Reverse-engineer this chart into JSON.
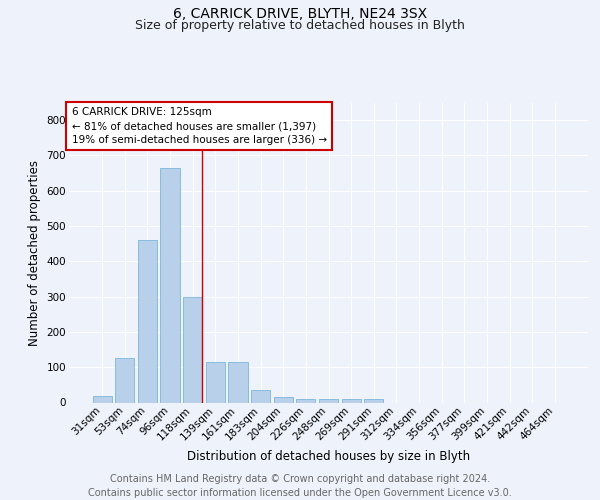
{
  "title1": "6, CARRICK DRIVE, BLYTH, NE24 3SX",
  "title2": "Size of property relative to detached houses in Blyth",
  "xlabel": "Distribution of detached houses by size in Blyth",
  "ylabel": "Number of detached properties",
  "footer1": "Contains HM Land Registry data © Crown copyright and database right 2024.",
  "footer2": "Contains public sector information licensed under the Open Government Licence v3.0.",
  "categories": [
    "31sqm",
    "53sqm",
    "74sqm",
    "96sqm",
    "118sqm",
    "139sqm",
    "161sqm",
    "183sqm",
    "204sqm",
    "226sqm",
    "248sqm",
    "269sqm",
    "291sqm",
    "312sqm",
    "334sqm",
    "356sqm",
    "377sqm",
    "399sqm",
    "421sqm",
    "442sqm",
    "464sqm"
  ],
  "values": [
    18,
    125,
    460,
    665,
    300,
    115,
    115,
    35,
    15,
    10,
    10,
    10,
    10,
    0,
    0,
    0,
    0,
    0,
    0,
    0,
    0
  ],
  "bar_color": "#b8d0ea",
  "bar_edge_color": "#6aaed6",
  "vline_color": "#cc0000",
  "annotation_text": "6 CARRICK DRIVE: 125sqm\n← 81% of detached houses are smaller (1,397)\n19% of semi-detached houses are larger (336) →",
  "annotation_box_color": "#ffffff",
  "annotation_box_edge": "#cc0000",
  "ylim": [
    0,
    850
  ],
  "yticks": [
    0,
    100,
    200,
    300,
    400,
    500,
    600,
    700,
    800
  ],
  "background_color": "#eef2fa",
  "plot_bg_color": "#eef2fa",
  "grid_color": "#ffffff",
  "title_fontsize": 10,
  "subtitle_fontsize": 9,
  "axis_label_fontsize": 8.5,
  "tick_fontsize": 7.5,
  "footer_fontsize": 7
}
